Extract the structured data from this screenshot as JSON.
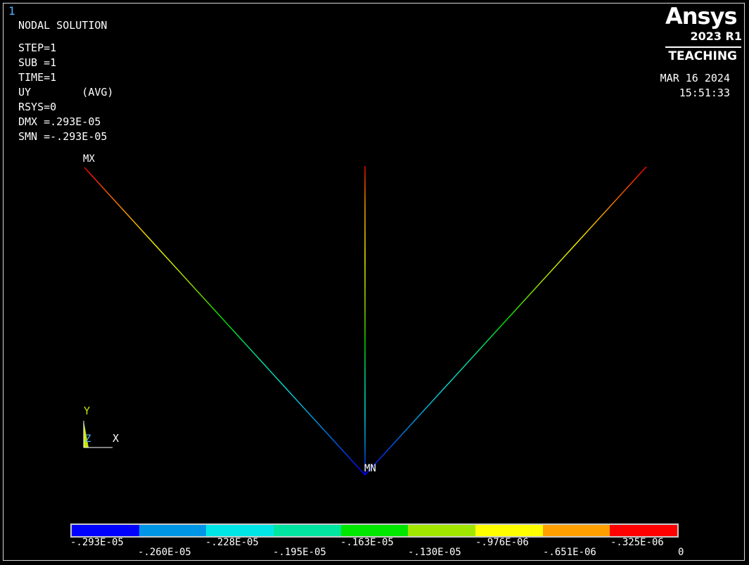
{
  "window_number": "1",
  "header": {
    "title": "NODAL SOLUTION",
    "lines": [
      "STEP=1",
      "SUB =1",
      "TIME=1",
      "UY        (AVG)",
      "RSYS=0",
      "DMX =.293E-05",
      "SMN =-.293E-05"
    ]
  },
  "logo": {
    "name": "Ansys",
    "version": "2023 R1",
    "edition": "TEACHING"
  },
  "datetime": {
    "date": "MAR 16 2024",
    "time": "15:51:33"
  },
  "plot_labels": {
    "max": "MX",
    "min": "MN"
  },
  "triad": {
    "y": "Y",
    "z": "Z",
    "x": "X"
  },
  "legend": {
    "colors": [
      "#0000ff",
      "#0096e6",
      "#00e6e6",
      "#00e6a0",
      "#00e600",
      "#a0e600",
      "#ffff00",
      "#ffa000",
      "#ff0000"
    ],
    "top_labels": [
      "-.293E-05",
      "-.228E-05",
      "-.163E-05",
      "-.976E-06",
      "-.325E-06"
    ],
    "bottom_labels": [
      "-.260E-05",
      "-.195E-05",
      "-.130E-05",
      "-.651E-06",
      "0"
    ]
  }
}
